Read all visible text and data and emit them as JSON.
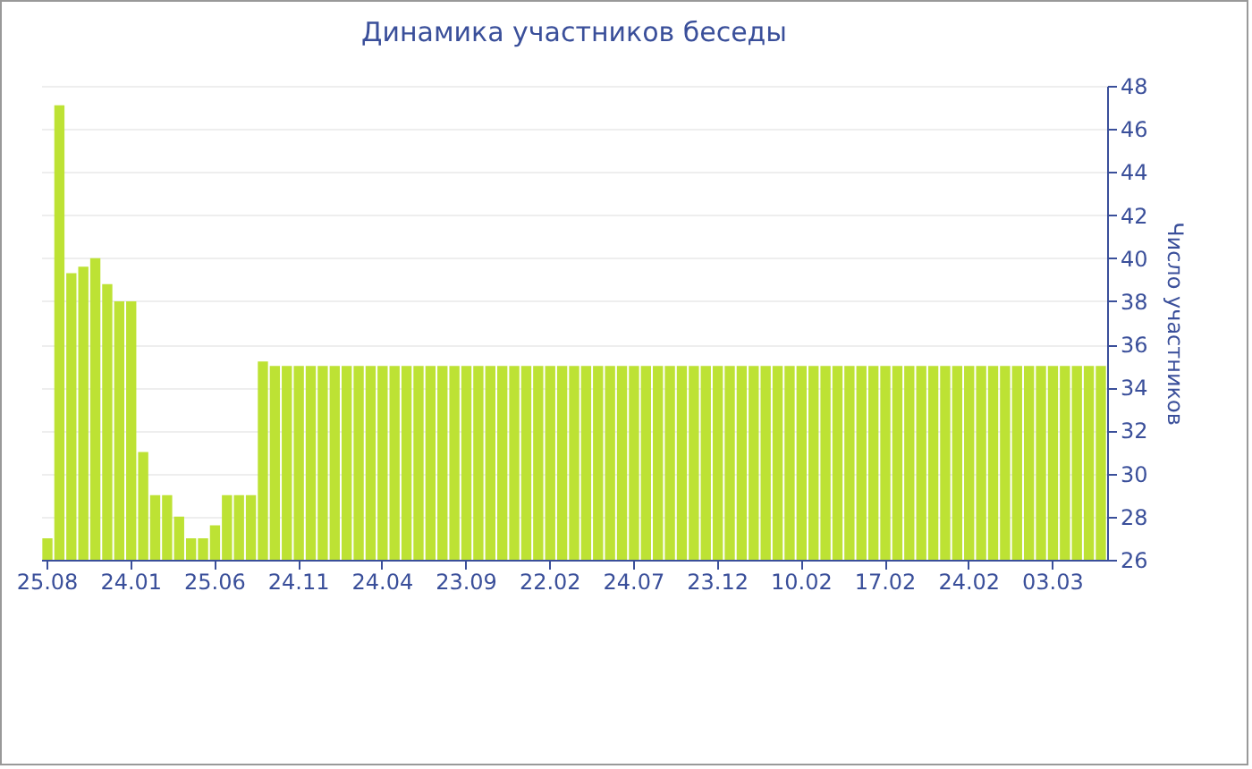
{
  "chart_data": {
    "type": "bar",
    "title": "Динамика участников беседы",
    "ylabel": "Число участников",
    "categories": [
      "25.08",
      null,
      null,
      null,
      null,
      null,
      null,
      "24.01",
      null,
      null,
      null,
      null,
      null,
      null,
      "25.06",
      null,
      null,
      null,
      null,
      null,
      null,
      "24.11",
      null,
      null,
      null,
      null,
      null,
      null,
      "24.04",
      null,
      null,
      null,
      null,
      null,
      null,
      "23.09",
      null,
      null,
      null,
      null,
      null,
      null,
      "22.02",
      null,
      null,
      null,
      null,
      null,
      null,
      "24.07",
      null,
      null,
      null,
      null,
      null,
      null,
      "23.12",
      null,
      null,
      null,
      null,
      null,
      null,
      "10.02",
      null,
      null,
      null,
      null,
      null,
      null,
      "17.02",
      null,
      null,
      null,
      null,
      null,
      null,
      "24.02",
      null,
      null,
      null,
      null,
      null,
      null,
      "03.03",
      null,
      null,
      null,
      null
    ],
    "values": [
      27,
      47.1,
      39.3,
      39.6,
      40,
      38.8,
      38,
      38,
      31,
      29,
      29,
      28,
      27,
      27,
      27.6,
      29,
      29,
      29,
      35.2,
      35,
      35,
      35,
      35,
      35,
      35,
      35,
      35,
      35,
      35,
      35,
      35,
      35,
      35,
      35,
      35,
      35,
      35,
      35,
      35,
      35,
      35,
      35,
      35,
      35,
      35,
      35,
      35,
      35,
      35,
      35,
      35,
      35,
      35,
      35,
      35,
      35,
      35,
      35,
      35,
      35,
      35,
      35,
      35,
      35,
      35,
      35,
      35,
      35,
      35,
      35,
      35,
      35,
      35,
      35,
      35,
      35,
      35,
      35,
      35,
      35,
      35,
      35,
      35,
      35,
      35,
      35,
      35,
      35,
      35
    ],
    "color": "#bde234",
    "ylim": [
      26,
      48
    ],
    "yticks": [
      26,
      28,
      30,
      32,
      34,
      36,
      38,
      40,
      42,
      44,
      46,
      48
    ],
    "grid": "y"
  }
}
